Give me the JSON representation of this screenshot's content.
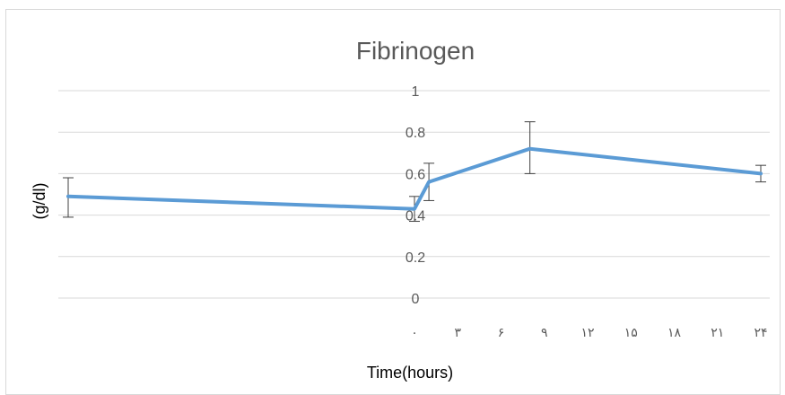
{
  "chart_data": {
    "type": "line",
    "title": "Fibrinogen",
    "xlabel": "Time(hours)",
    "ylabel": "(g/dl)",
    "ylim": [
      0,
      1
    ],
    "y_ticks": [
      "0",
      "0.2",
      "0.4",
      "0.6",
      "0.8",
      "1"
    ],
    "x_ticks": [
      "۰",
      "۳",
      "۶",
      "۹",
      "۱۲",
      "۱۵",
      "۱۸",
      "۲۱",
      "۲۴"
    ],
    "grid": true,
    "series": [
      {
        "color": "#5b9bd5",
        "points": [
          {
            "x": -24,
            "y": 0.49,
            "err_low": 0.39,
            "err_high": 0.58
          },
          {
            "x": 0,
            "y": 0.43,
            "err_low": 0.37,
            "err_high": 0.49
          },
          {
            "x": 1,
            "y": 0.56,
            "err_low": 0.47,
            "err_high": 0.65
          },
          {
            "x": 8,
            "y": 0.72,
            "err_low": 0.6,
            "err_high": 0.85
          },
          {
            "x": 24,
            "y": 0.6,
            "err_low": 0.56,
            "err_high": 0.64
          }
        ]
      }
    ]
  }
}
